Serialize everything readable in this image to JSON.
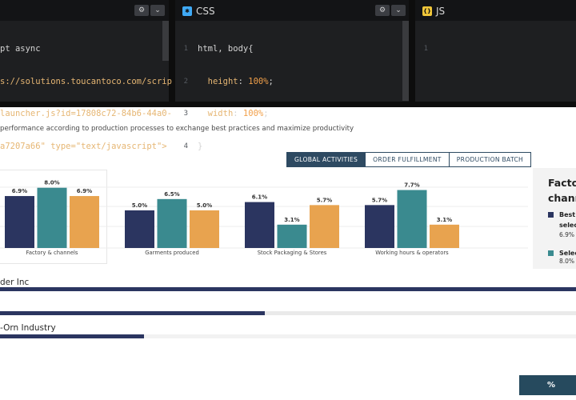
{
  "editor": {
    "html_pane": {
      "code_lines": [
        "pt async",
        "s://solutions.toucantoco.com/scrip",
        "launcher.js?id=17808c72-84b6-44a0-",
        "a7207a66\" type=\"text/javascript\">"
      ]
    },
    "css_pane": {
      "title": "CSS",
      "icon": "css-icon",
      "line_numbers": [
        "1",
        "2",
        "3",
        "4"
      ],
      "code_line_1": "html, body{",
      "prop_height": "height",
      "val_height": "100%",
      "prop_width": "width",
      "val_width": "100%",
      "closing": "}"
    },
    "js_pane": {
      "title": "JS",
      "icon": "js-icon",
      "line_numbers": [
        "1"
      ]
    },
    "settings_icon": "gear-icon",
    "collapse_icon": "chevron-down-icon"
  },
  "dashboard": {
    "subtitle": "performance according to production processes to exchange best practices and maximize productivity",
    "tabs": [
      "GLOBAL ACTIVITIES",
      "ORDER FULFILLMENT",
      "PRODUCTION BATCH"
    ],
    "active_tab": "GLOBAL ACTIVITIES",
    "side_card": {
      "title_line1": "Facto",
      "title_line2": "chann",
      "legend": [
        {
          "line1": "Best",
          "line2": "selec",
          "value": "6.9%"
        },
        {
          "line1": "Selec",
          "line2": "",
          "value": "8.0%"
        }
      ]
    },
    "companies": [
      {
        "name": "der Inc",
        "progress": 1.0
      },
      {
        "name": "",
        "progress": 0.46
      },
      {
        "name": "-Orn Industry",
        "progress": 0.25
      }
    ],
    "pct_button": "%"
  },
  "colors": {
    "navy": "#2b3560",
    "teal": "#3a8a8f",
    "orange": "#e8a34f",
    "tab_accent": "#2e4a62"
  },
  "chart_data": {
    "type": "bar",
    "categories": [
      "Factory & channels",
      "Garments produced",
      "Stock Packaging & Stores",
      "Working hours & operators"
    ],
    "series": [
      {
        "values": [
          6.9,
          5.0,
          6.1,
          5.7
        ],
        "labels": [
          "6.9%",
          "5.0%",
          "6.1%",
          "5.7%"
        ],
        "color": "#2b3560"
      },
      {
        "values": [
          8.0,
          6.5,
          3.1,
          7.7
        ],
        "labels": [
          "8.0%",
          "6.5%",
          "3.1%",
          "7.7%"
        ],
        "color": "#3a8a8f"
      },
      {
        "values": [
          6.9,
          5.0,
          5.7,
          3.1
        ],
        "labels": [
          "6.9%",
          "5.0%",
          "5.7%",
          "3.1%"
        ],
        "color": "#e8a34f"
      }
    ],
    "ylim": [
      0,
      8.5
    ],
    "grid": true
  }
}
